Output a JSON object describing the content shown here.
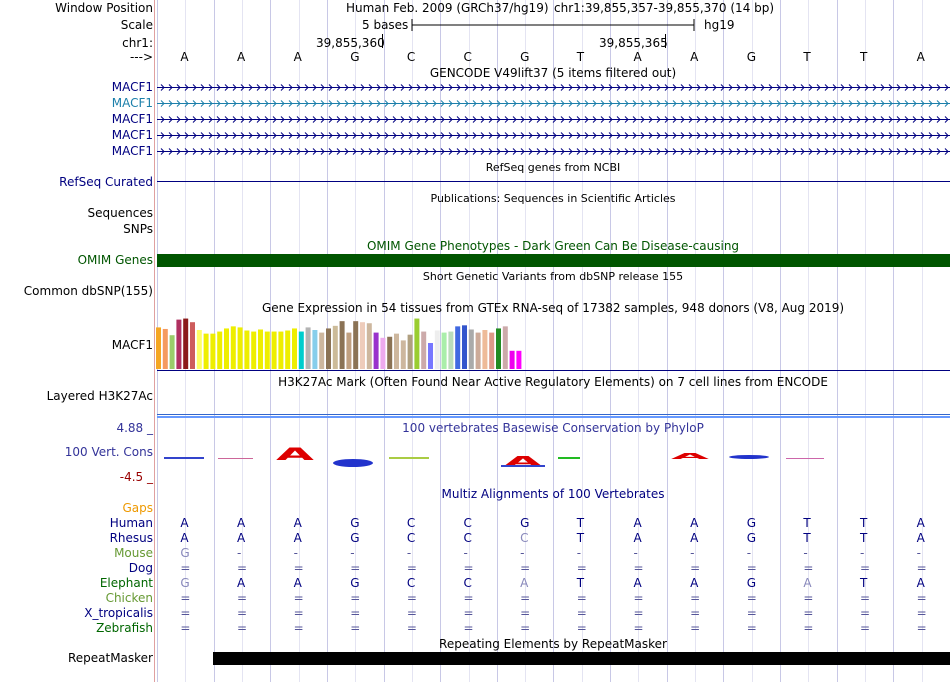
{
  "header": {
    "window_position_label": "Window Position",
    "assembly": "Human Feb. 2009 (GRCh37/hg19)",
    "position": "chr1:39,855,357-39,855,370 (14 bp)",
    "scale_label": "Scale",
    "scale_bar_text": "5 bases",
    "scale_db": "hg19",
    "chrom_label": "chr1:",
    "coord_1": "39,855,360",
    "coord_2": "39,855,365",
    "strand_label": "--->"
  },
  "bases": [
    "A",
    "A",
    "A",
    "G",
    "C",
    "C",
    "G",
    "T",
    "A",
    "A",
    "G",
    "T",
    "T",
    "A"
  ],
  "gencode": {
    "title": "GENCODE V49lift37 (5 items filtered out)",
    "tracks": [
      {
        "name": "MACF1",
        "color": "#000080"
      },
      {
        "name": "MACF1",
        "color": "#1b7faa"
      },
      {
        "name": "MACF1",
        "color": "#000080"
      },
      {
        "name": "MACF1",
        "color": "#000080"
      },
      {
        "name": "MACF1",
        "color": "#000080"
      }
    ]
  },
  "refseq": {
    "title": "RefSeq genes from NCBI",
    "label": "RefSeq Curated"
  },
  "publications": {
    "title": "Publications: Sequences in Scientific Articles",
    "label_1": "Sequences",
    "label_2": "SNPs"
  },
  "omim": {
    "title": "OMIM Gene Phenotypes - Dark Green Can Be Disease-causing",
    "label": "OMIM Genes",
    "color": "#005500"
  },
  "dbsnp": {
    "title": "Short Genetic Variants from dbSNP release 155",
    "label": "Common dbSNP(155)"
  },
  "gtex": {
    "title": "Gene Expression in 54 tissues from GTEx RNA-seq of 17382 samples, 948 donors (V8, Aug 2019)",
    "label": "MACF1",
    "bars": [
      {
        "v": 0.8,
        "c": "#f5a623"
      },
      {
        "v": 0.77,
        "c": "#f59a60"
      },
      {
        "v": 0.65,
        "c": "#9acd6a"
      },
      {
        "v": 0.95,
        "c": "#b03060"
      },
      {
        "v": 0.97,
        "c": "#8b1a1a"
      },
      {
        "v": 0.9,
        "c": "#cd5c5c"
      },
      {
        "v": 0.75,
        "c": "#ffff66"
      },
      {
        "v": 0.68,
        "c": "#eeee00"
      },
      {
        "v": 0.68,
        "c": "#eeee00"
      },
      {
        "v": 0.72,
        "c": "#eeee00"
      },
      {
        "v": 0.78,
        "c": "#eeee00"
      },
      {
        "v": 0.82,
        "c": "#eeee00"
      },
      {
        "v": 0.8,
        "c": "#eeee00"
      },
      {
        "v": 0.74,
        "c": "#eeee00"
      },
      {
        "v": 0.72,
        "c": "#eeee00"
      },
      {
        "v": 0.76,
        "c": "#eeee00"
      },
      {
        "v": 0.72,
        "c": "#eeee00"
      },
      {
        "v": 0.72,
        "c": "#eeee00"
      },
      {
        "v": 0.72,
        "c": "#eeee00"
      },
      {
        "v": 0.74,
        "c": "#eeee00"
      },
      {
        "v": 0.78,
        "c": "#eeee00"
      },
      {
        "v": 0.72,
        "c": "#00cdcd"
      },
      {
        "v": 0.8,
        "c": "#b4b4b4"
      },
      {
        "v": 0.75,
        "c": "#87ceeb"
      },
      {
        "v": 0.7,
        "c": "#cdb79e"
      },
      {
        "v": 0.78,
        "c": "#8b7355"
      },
      {
        "v": 0.83,
        "c": "#ccbb99"
      },
      {
        "v": 0.92,
        "c": "#8b7355"
      },
      {
        "v": 0.7,
        "c": "#c0a080"
      },
      {
        "v": 0.92,
        "c": "#8b7355"
      },
      {
        "v": 0.9,
        "c": "#eeccbb"
      },
      {
        "v": 0.88,
        "c": "#cdb79e"
      },
      {
        "v": 0.7,
        "c": "#9932cc"
      },
      {
        "v": 0.6,
        "c": "#eeaaee"
      },
      {
        "v": 0.62,
        "c": "#8b7355"
      },
      {
        "v": 0.68,
        "c": "#cdb79e"
      },
      {
        "v": 0.55,
        "c": "#cdb79e"
      },
      {
        "v": 0.66,
        "c": "#b0a080"
      },
      {
        "v": 0.97,
        "c": "#9acd32"
      },
      {
        "v": 0.72,
        "c": "#ccaaaa"
      },
      {
        "v": 0.5,
        "c": "#7777ff"
      },
      {
        "v": 0.74,
        "c": "#eeeeee"
      },
      {
        "v": 0.7,
        "c": "#aaeeaa"
      },
      {
        "v": 0.72,
        "c": "#bbddbb"
      },
      {
        "v": 0.82,
        "c": "#4169e1"
      },
      {
        "v": 0.84,
        "c": "#3355cc"
      },
      {
        "v": 0.76,
        "c": "#aaaaaa"
      },
      {
        "v": 0.7,
        "c": "#ccaa99"
      },
      {
        "v": 0.75,
        "c": "#eebb99"
      },
      {
        "v": 0.7,
        "c": "#dd9988"
      },
      {
        "v": 0.78,
        "c": "#228b22"
      },
      {
        "v": 0.82,
        "c": "#ccaaaa"
      },
      {
        "v": 0.35,
        "c": "#ee00ee"
      },
      {
        "v": 0.35,
        "c": "#ff00ff"
      }
    ]
  },
  "h3k27ac": {
    "title": "H3K27Ac Mark (Often Found Near Active Regulatory Elements) on 7 cell lines from ENCODE",
    "label": "Layered H3K27Ac"
  },
  "phylop": {
    "title": "100 vertebrates Basewise Conservation by PhyloP",
    "label": "100 Vert. Cons",
    "max": "4.88 _",
    "min": "-4.5 _"
  },
  "multiz": {
    "title": "Multiz Alignments of 100 Vertebrates",
    "gaps_label": "Gaps",
    "species": [
      {
        "name": "Human",
        "color": "#000080",
        "seq": [
          "A",
          "A",
          "A",
          "G",
          "C",
          "C",
          "G",
          "T",
          "A",
          "A",
          "G",
          "T",
          "T",
          "A"
        ]
      },
      {
        "name": "Rhesus",
        "color": "#000080",
        "seq": [
          "A",
          "A",
          "A",
          "G",
          "C",
          "C",
          "C",
          "T",
          "A",
          "A",
          "G",
          "T",
          "T",
          "A"
        ]
      },
      {
        "name": "Mouse",
        "color": "#669933",
        "seq": [
          "G",
          "-",
          "-",
          "-",
          "-",
          "-",
          "-",
          "-",
          "-",
          "-",
          "-",
          "-",
          "-",
          "-"
        ]
      },
      {
        "name": "Dog",
        "color": "#000080",
        "seq": [
          "=",
          "=",
          "=",
          "=",
          "=",
          "=",
          "=",
          "=",
          "=",
          "=",
          "=",
          "=",
          "=",
          "="
        ]
      },
      {
        "name": "Elephant",
        "color": "#006600",
        "seq": [
          "G",
          "A",
          "A",
          "G",
          "C",
          "C",
          "A",
          "T",
          "A",
          "A",
          "G",
          "A",
          "T",
          "A"
        ]
      },
      {
        "name": "Chicken",
        "color": "#669933",
        "seq": [
          "=",
          "=",
          "=",
          "=",
          "=",
          "=",
          "=",
          "=",
          "=",
          "=",
          "=",
          "=",
          "=",
          "="
        ]
      },
      {
        "name": "X_tropicalis",
        "color": "#000080",
        "seq": [
          "=",
          "=",
          "=",
          "=",
          "=",
          "=",
          "=",
          "=",
          "=",
          "=",
          "=",
          "=",
          "=",
          "="
        ]
      },
      {
        "name": "Zebrafish",
        "color": "#006600",
        "seq": [
          "=",
          "=",
          "=",
          "=",
          "=",
          "=",
          "=",
          "=",
          "=",
          "=",
          "=",
          "=",
          "=",
          "="
        ]
      }
    ]
  },
  "repeatmasker": {
    "title": "Repeating Elements by RepeatMasker",
    "label": "RepeatMasker"
  }
}
